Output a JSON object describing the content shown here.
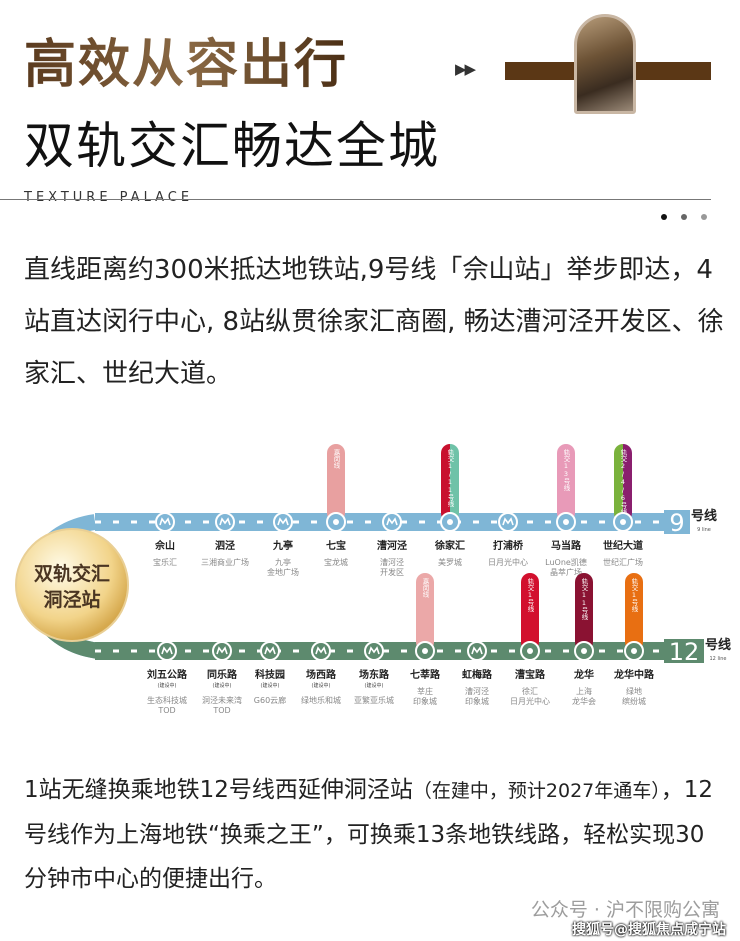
{
  "header": {
    "title_line1": "高效从容出行",
    "title_line2": "双轨交汇畅达全城",
    "arrows": "▶▶",
    "subtitle": "TEXTURE  PALACE"
  },
  "paragraph1": "直线距离约300米抵达地铁站,9号线「佘山站」举步即达，4站直达闵行中心, 8站纵贯徐家汇商圈, 畅达漕河泾开发区、徐家汇、世纪大道。",
  "map": {
    "badge": "双轨交汇\n洞泾站",
    "line9": {
      "number": "9",
      "label": "号线",
      "sub": "9 line",
      "color": "#7fb6d6",
      "stations": [
        {
          "name": "佘山",
          "landmark": "宝乐汇"
        },
        {
          "name": "泗泾",
          "landmark": "三湘商业广场"
        },
        {
          "name": "九亭",
          "landmark": "九亭\n金地广场"
        },
        {
          "name": "七宝",
          "landmark": "宝龙城",
          "transfer": {
            "text": "嘉闵线",
            "colors": [
              "#e8a0a0"
            ]
          }
        },
        {
          "name": "漕河泾",
          "landmark": "漕河泾\n开发区"
        },
        {
          "name": "徐家汇",
          "landmark": "美罗城",
          "transfer": {
            "text": "轨交1/11号线",
            "colors": [
              "#c8102e",
              "#6fc2a8"
            ]
          }
        },
        {
          "name": "打浦桥",
          "landmark": "日月光中心"
        },
        {
          "name": "马当路",
          "landmark": "LuOne凯德\n晶萃广场",
          "transfer": {
            "text": "轨交13号线",
            "colors": [
              "#e89ab8"
            ]
          }
        },
        {
          "name": "世纪大道",
          "landmark": "世纪汇广场",
          "transfer": {
            "text": "轨交2/4/6号线",
            "colors": [
              "#7ab23c",
              "#8a1f6e"
            ]
          }
        }
      ]
    },
    "line12": {
      "number": "12",
      "label": "号线",
      "sub": "12 line",
      "color": "#5d8a6e",
      "stations": [
        {
          "name": "刘五公路",
          "status": "(建设中)",
          "landmark": "生态科技城\nTOD"
        },
        {
          "name": "同乐路",
          "status": "(建设中)",
          "landmark": "洞泾未来湾\nTOD"
        },
        {
          "name": "科技园",
          "status": "(建设中)",
          "landmark": "G60云廊"
        },
        {
          "name": "场西路",
          "status": "(建设中)",
          "landmark": "绿地乐和城"
        },
        {
          "name": "场东路",
          "status": "(建设中)",
          "landmark": "亚繁亚乐城"
        },
        {
          "name": "七莘路",
          "landmark": "莘庄\n印象城",
          "transfer": {
            "text": "嘉闵线",
            "colors": [
              "#eba8a8"
            ]
          }
        },
        {
          "name": "虹梅路",
          "landmark": "漕河泾\n印象城"
        },
        {
          "name": "漕宝路",
          "landmark": "徐汇\n日月光中心",
          "transfer": {
            "text": "轨交1号线",
            "colors": [
              "#d2102e"
            ]
          }
        },
        {
          "name": "龙华",
          "landmark": "上海\n龙华会",
          "transfer": {
            "text": "轨交11号线",
            "colors": [
              "#8a1232"
            ]
          }
        },
        {
          "name": "龙华中路",
          "landmark": "绿地\n缤纷城",
          "transfer": {
            "text": "轨交1号线",
            "colors": [
              "#e86f12"
            ]
          }
        }
      ]
    }
  },
  "paragraph2": {
    "main": "1站无缝换乘地铁12号线西延伸洞泾站",
    "note": "（在建中，预计2027年通车）",
    "rest": "，12号线作为上海地铁“换乘之王”，可换乘13条地铁线路，轻松实现30分钟市中心的便捷出行。"
  },
  "watermarks": {
    "wechat": "公众号 · 沪不限购公寓",
    "sohu": "搜狐号@搜狐焦点咸宁站"
  },
  "colors": {
    "title_brown": "#6b4a2a",
    "bar_brown": "#5b3715"
  }
}
